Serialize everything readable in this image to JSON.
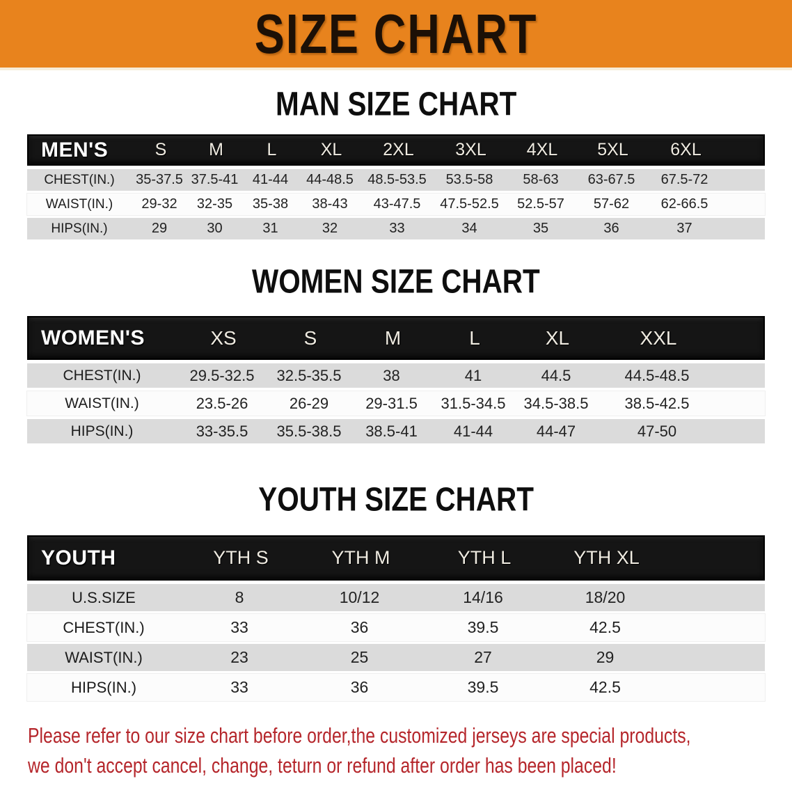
{
  "banner": {
    "title": "SIZE CHART",
    "bg_color": "#E8831D",
    "text_color": "#1C1006"
  },
  "sections": [
    {
      "title": "MAN SIZE CHART",
      "table": {
        "header_label": "MEN'S",
        "sizes": [
          "S",
          "M",
          "L",
          "XL",
          "2XL",
          "3XL",
          "4XL",
          "5XL",
          "6XL"
        ],
        "rows": [
          {
            "label": "CHEST(IN.)",
            "values": [
              "35-37.5",
              "37.5-41",
              "41-44",
              "44-48.5",
              "48.5-53.5",
              "53.5-58",
              "58-63",
              "63-67.5",
              "67.5-72"
            ]
          },
          {
            "label": "WAIST(IN.)",
            "values": [
              "29-32",
              "32-35",
              "35-38",
              "38-43",
              "43-47.5",
              "47.5-52.5",
              "52.5-57",
              "57-62",
              "62-66.5"
            ]
          },
          {
            "label": "HIPS(IN.)",
            "values": [
              "29",
              "30",
              "31",
              "32",
              "33",
              "34",
              "35",
              "36",
              "37"
            ]
          }
        ]
      }
    },
    {
      "title": "WOMEN SIZE CHART",
      "table": {
        "header_label": "WOMEN'S",
        "sizes": [
          "XS",
          "S",
          "M",
          "L",
          "XL",
          "XXL"
        ],
        "rows": [
          {
            "label": "CHEST(IN.)",
            "values": [
              "29.5-32.5",
              "32.5-35.5",
              "38",
              "41",
              "44.5",
              "44.5-48.5"
            ]
          },
          {
            "label": "WAIST(IN.)",
            "values": [
              "23.5-26",
              "26-29",
              "29-31.5",
              "31.5-34.5",
              "34.5-38.5",
              "38.5-42.5"
            ]
          },
          {
            "label": "HIPS(IN.)",
            "values": [
              "33-35.5",
              "35.5-38.5",
              "38.5-41",
              "41-44",
              "44-47",
              "47-50"
            ]
          }
        ]
      }
    },
    {
      "title": "YOUTH SIZE CHART",
      "table": {
        "header_label": "YOUTH",
        "sizes": [
          "YTH S",
          "YTH M",
          "YTH L",
          "YTH XL"
        ],
        "rows": [
          {
            "label": "U.S.SIZE",
            "values": [
              "8",
              "10/12",
              "14/16",
              "18/20"
            ]
          },
          {
            "label": "CHEST(IN.)",
            "values": [
              "33",
              "36",
              "39.5",
              "42.5"
            ]
          },
          {
            "label": "WAIST(IN.)",
            "values": [
              "23",
              "25",
              "27",
              "29"
            ]
          },
          {
            "label": "HIPS(IN.)",
            "values": [
              "33",
              "36",
              "39.5",
              "42.5"
            ]
          }
        ]
      }
    }
  ],
  "footer": {
    "line1": "Please refer to our size chart before order,the customized jerseys are special products,",
    "line2": "we don't accept cancel, change, teturn or refund after order has been placed!",
    "text_color": "#B5262B"
  },
  "colors": {
    "banner_orange": "#E8831D",
    "header_bar_black": "#151515",
    "row_gray": "#DBDBDB",
    "row_white": "#FCFCFC",
    "warning_red": "#B5262B"
  }
}
